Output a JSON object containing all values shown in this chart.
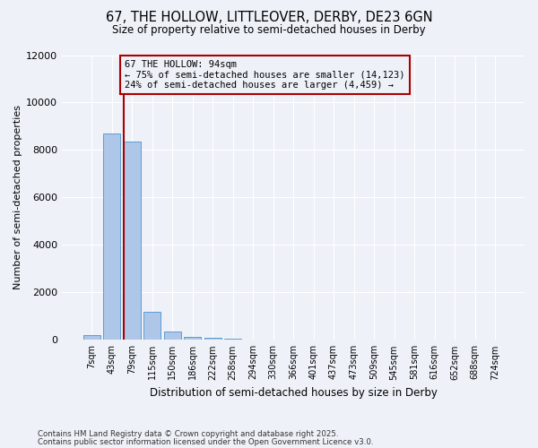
{
  "title_line1": "67, THE HOLLOW, LITTLEOVER, DERBY, DE23 6GN",
  "title_line2": "Size of property relative to semi-detached houses in Derby",
  "xlabel": "Distribution of semi-detached houses by size in Derby",
  "ylabel": "Number of semi-detached properties",
  "categories": [
    "7sqm",
    "43sqm",
    "79sqm",
    "115sqm",
    "150sqm",
    "186sqm",
    "222sqm",
    "258sqm",
    "294sqm",
    "330sqm",
    "366sqm",
    "401sqm",
    "437sqm",
    "473sqm",
    "509sqm",
    "545sqm",
    "581sqm",
    "616sqm",
    "652sqm",
    "688sqm",
    "724sqm"
  ],
  "values": [
    200,
    8700,
    8350,
    1200,
    350,
    130,
    100,
    50,
    0,
    0,
    0,
    0,
    0,
    0,
    0,
    0,
    0,
    0,
    0,
    0,
    0
  ],
  "bar_color": "#aec6e8",
  "bar_edge_color": "#5a9fd4",
  "vline_color": "#aa0000",
  "annotation_text": "67 THE HOLLOW: 94sqm\n← 75% of semi-detached houses are smaller (14,123)\n24% of semi-detached houses are larger (4,459) →",
  "ylim": [
    0,
    12000
  ],
  "yticks": [
    0,
    2000,
    4000,
    6000,
    8000,
    10000,
    12000
  ],
  "bg_color": "#eef2f8",
  "grid_color": "#ffffff",
  "footer_line1": "Contains HM Land Registry data © Crown copyright and database right 2025.",
  "footer_line2": "Contains public sector information licensed under the Open Government Licence v3.0."
}
